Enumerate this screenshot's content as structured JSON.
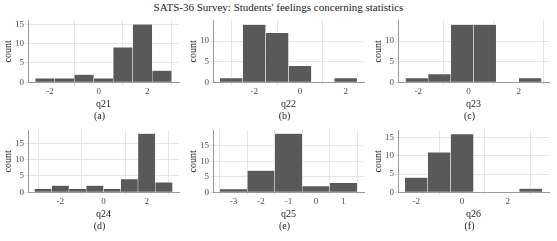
{
  "title": "SATS-36 Survey: Students' feelings concerning statistics",
  "chart_data": [
    {
      "type": "histogram",
      "x_label": "q21",
      "y_label": "count",
      "annotation": "(a)",
      "bins": [
        -2.6,
        -1.8,
        -1.0,
        -0.2,
        0.6,
        1.4,
        2.2,
        3.0
      ],
      "values": [
        1,
        1,
        2,
        1,
        9,
        15,
        3
      ],
      "xlim": [
        -2.9,
        3.3
      ],
      "xticks": [
        -2,
        0,
        2
      ],
      "ylim": [
        0,
        16
      ],
      "yticks": [
        0,
        5,
        10,
        15
      ],
      "color": "#595959",
      "grid": true
    },
    {
      "type": "histogram",
      "x_label": "q22",
      "y_label": "count",
      "annotation": "(b)",
      "bins": [
        -3.5,
        -2.5,
        -1.5,
        -0.5,
        0.5,
        1.5,
        2.5
      ],
      "values": [
        1,
        14,
        12,
        4,
        0,
        1
      ],
      "xlim": [
        -3.8,
        2.8
      ],
      "xticks": [
        -2,
        0,
        2
      ],
      "ylim": [
        0,
        15
      ],
      "yticks": [
        0,
        5,
        10
      ],
      "color": "#595959",
      "grid": true
    },
    {
      "type": "histogram",
      "x_label": "q23",
      "y_label": "count",
      "annotation": "(c)",
      "bins": [
        -2.5,
        -1.6,
        -0.7,
        0.2,
        1.1,
        2.0,
        2.9
      ],
      "values": [
        1,
        2,
        14,
        14,
        0,
        1
      ],
      "xlim": [
        -2.8,
        3.2
      ],
      "xticks": [
        -2,
        0,
        2
      ],
      "ylim": [
        0,
        15
      ],
      "yticks": [
        0,
        5,
        10
      ],
      "color": "#595959",
      "grid": true
    },
    {
      "type": "histogram",
      "x_label": "q24",
      "y_label": "count",
      "annotation": "(d)",
      "bins": [
        -3.2,
        -2.4,
        -1.6,
        -0.8,
        0,
        0.8,
        1.6,
        2.4,
        3.2
      ],
      "values": [
        1,
        2,
        1,
        2,
        1,
        4,
        18,
        3
      ],
      "xlim": [
        -3.5,
        3.5
      ],
      "xticks": [
        -2,
        0,
        2
      ],
      "ylim": [
        0,
        19
      ],
      "yticks": [
        0,
        5,
        10,
        15
      ],
      "color": "#595959",
      "grid": true
    },
    {
      "type": "histogram",
      "x_label": "q25",
      "y_label": "count",
      "annotation": "(e)",
      "bins": [
        -3.5,
        -2.5,
        -1.5,
        -0.5,
        0.5,
        1.5
      ],
      "values": [
        1,
        7,
        19,
        2,
        3
      ],
      "xlim": [
        -3.75,
        1.75
      ],
      "xticks": [
        -3,
        -2,
        -1,
        0,
        1
      ],
      "ylim": [
        0,
        20
      ],
      "yticks": [
        0,
        5,
        10,
        15
      ],
      "color": "#595959",
      "grid": true
    },
    {
      "type": "histogram",
      "x_label": "q26",
      "y_label": "count",
      "annotation": "(f)",
      "bins": [
        -2.5,
        -1.5,
        -0.5,
        0.5,
        1.5,
        2.5,
        3.5
      ],
      "values": [
        4,
        11,
        16,
        0,
        0,
        1
      ],
      "xlim": [
        -2.8,
        3.8
      ],
      "xticks": [
        -2,
        0,
        2
      ],
      "ylim": [
        0,
        17
      ],
      "yticks": [
        0,
        5,
        10,
        15
      ],
      "color": "#595959",
      "grid": true
    }
  ]
}
